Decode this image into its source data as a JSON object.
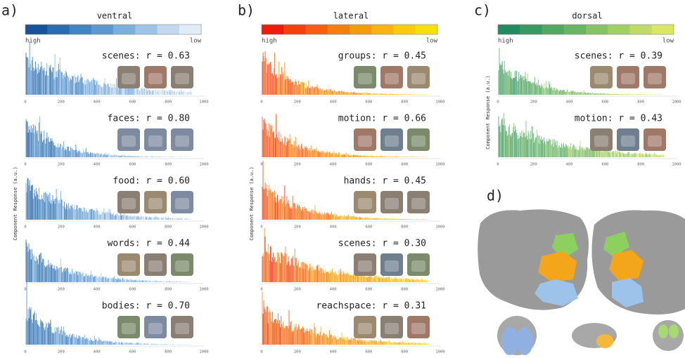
{
  "panels": [
    {
      "label": "a)",
      "stream": "ventral",
      "scale_high": "high",
      "scale_low": "low",
      "colors": [
        "#15549a",
        "#2b6cb0",
        "#4384c2",
        "#5d98cf",
        "#7dafdb",
        "#9fc3e6",
        "#c1d8ef",
        "#e2ecf7"
      ],
      "y_label": "Component Response (a.u.)",
      "x_ticks": [
        "0",
        "200",
        "400",
        "600",
        "800",
        "1000"
      ],
      "components": [
        {
          "title": "scenes: r = 0.63"
        },
        {
          "title": "faces: r = 0.80"
        },
        {
          "title": "food: r = 0.60"
        },
        {
          "title": "words: r = 0.44"
        },
        {
          "title": "bodies: r = 0.70"
        }
      ]
    },
    {
      "label": "b)",
      "stream": "lateral",
      "scale_high": "high",
      "scale_low": "low",
      "colors": [
        "#f21a0c",
        "#f4400d",
        "#f5600f",
        "#f67d10",
        "#f79a0f",
        "#f8b40c",
        "#f8cc08",
        "#f7e104"
      ],
      "y_label": "Component Response (a.u.)",
      "x_ticks": [
        "0",
        "200",
        "400",
        "600",
        "800",
        "1000"
      ],
      "components": [
        {
          "title": "groups: r = 0.45"
        },
        {
          "title": "motion: r = 0.66"
        },
        {
          "title": "hands: r = 0.45"
        },
        {
          "title": "scenes: r = 0.30"
        },
        {
          "title": "reachspace: r = 0.31"
        }
      ]
    },
    {
      "label": "c)",
      "stream": "dorsal",
      "scale_high": "high",
      "scale_low": "low",
      "colors": [
        "#228a5e",
        "#3a9960",
        "#52a863",
        "#6ab565",
        "#86c267",
        "#a2cf66",
        "#bfdb63",
        "#dbe85e"
      ],
      "y_label": "Component Response (a.u.)",
      "x_ticks": [
        "0",
        "200",
        "400",
        "600",
        "800",
        "1000"
      ],
      "components": [
        {
          "title": "scenes: r = 0.39"
        },
        {
          "title": "motion: r = 0.43"
        }
      ]
    },
    {
      "label": "d)"
    }
  ]
}
